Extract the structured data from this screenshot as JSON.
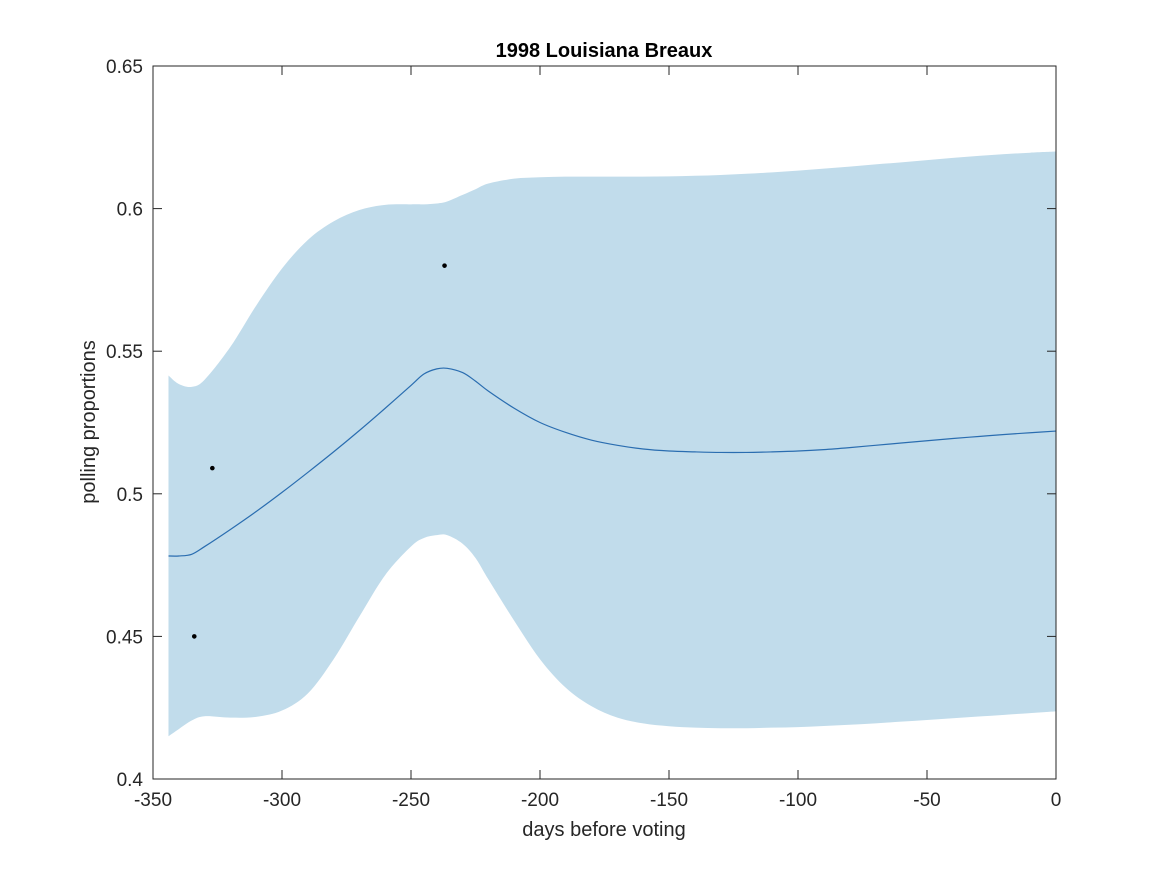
{
  "chart_data": {
    "type": "line",
    "title": "1998 Louisiana Breaux",
    "xlabel": "days before voting",
    "ylabel": "polling proportions",
    "xlim": [
      -350,
      0
    ],
    "ylim": [
      0.4,
      0.65
    ],
    "xticks": [
      -350,
      -300,
      -250,
      -200,
      -150,
      -100,
      -50,
      0
    ],
    "xtick_labels": [
      "-350",
      "-300",
      "-250",
      "-200",
      "-150",
      "-100",
      "-50",
      "0"
    ],
    "yticks": [
      0.4,
      0.45,
      0.5,
      0.55,
      0.6,
      0.65
    ],
    "ytick_labels": [
      "0.4",
      "0.45",
      "0.5",
      "0.55",
      "0.6",
      "0.65"
    ],
    "grid": false,
    "colors": {
      "band": "#c1dceb",
      "line": "#2a6db0",
      "points": "#000000",
      "axes": "#262626"
    },
    "series": [
      {
        "kind": "mean-line",
        "x": [
          -344,
          -340,
          -335,
          -330,
          -320,
          -310,
          -300,
          -290,
          -280,
          -270,
          -260,
          -250,
          -245,
          -240,
          -236,
          -230,
          -225,
          -220,
          -210,
          -200,
          -190,
          -180,
          -170,
          -160,
          -150,
          -140,
          -130,
          -120,
          -110,
          -100,
          -90,
          -80,
          -70,
          -60,
          -50,
          -40,
          -30,
          -20,
          -10,
          0
        ],
        "y": [
          0.4782,
          0.4782,
          0.4788,
          0.4815,
          0.4875,
          0.4938,
          0.5005,
          0.5075,
          0.5147,
          0.5222,
          0.53,
          0.538,
          0.542,
          0.5438,
          0.544,
          0.5425,
          0.5395,
          0.536,
          0.53,
          0.525,
          0.5215,
          0.5188,
          0.517,
          0.5157,
          0.515,
          0.5147,
          0.5145,
          0.5145,
          0.5147,
          0.515,
          0.5155,
          0.5162,
          0.517,
          0.5178,
          0.5186,
          0.5194,
          0.5201,
          0.5208,
          0.5214,
          0.522
        ]
      },
      {
        "kind": "confidence-band",
        "x": [
          -344,
          -340,
          -335,
          -330,
          -320,
          -310,
          -300,
          -290,
          -280,
          -270,
          -260,
          -250,
          -245,
          -240,
          -236,
          -230,
          -225,
          -220,
          -210,
          -200,
          -190,
          -180,
          -170,
          -160,
          -150,
          -140,
          -130,
          -120,
          -110,
          -100,
          -90,
          -80,
          -70,
          -60,
          -50,
          -40,
          -30,
          -20,
          -10,
          0
        ],
        "upper": [
          0.5415,
          0.5385,
          0.5375,
          0.54,
          0.5515,
          0.566,
          0.579,
          0.589,
          0.5955,
          0.5995,
          0.6013,
          0.6015,
          0.6015,
          0.6018,
          0.6025,
          0.6048,
          0.6068,
          0.6088,
          0.6105,
          0.611,
          0.6112,
          0.6112,
          0.6112,
          0.6112,
          0.6113,
          0.6115,
          0.6118,
          0.6122,
          0.6127,
          0.6133,
          0.614,
          0.6147,
          0.6155,
          0.6162,
          0.617,
          0.6178,
          0.6185,
          0.6191,
          0.6196,
          0.62
        ],
        "lower": [
          0.415,
          0.4175,
          0.4205,
          0.422,
          0.4215,
          0.4218,
          0.424,
          0.43,
          0.442,
          0.457,
          0.4715,
          0.4815,
          0.4845,
          0.4855,
          0.4855,
          0.4825,
          0.4775,
          0.47,
          0.4555,
          0.442,
          0.432,
          0.4255,
          0.4215,
          0.4195,
          0.4185,
          0.418,
          0.4178,
          0.4178,
          0.418,
          0.4182,
          0.4186,
          0.419,
          0.4195,
          0.4201,
          0.4207,
          0.4213,
          0.4219,
          0.4225,
          0.4231,
          0.4237
        ]
      },
      {
        "kind": "observations",
        "x": [
          -334,
          -327,
          -237
        ],
        "y": [
          0.45,
          0.509,
          0.58
        ]
      }
    ]
  }
}
